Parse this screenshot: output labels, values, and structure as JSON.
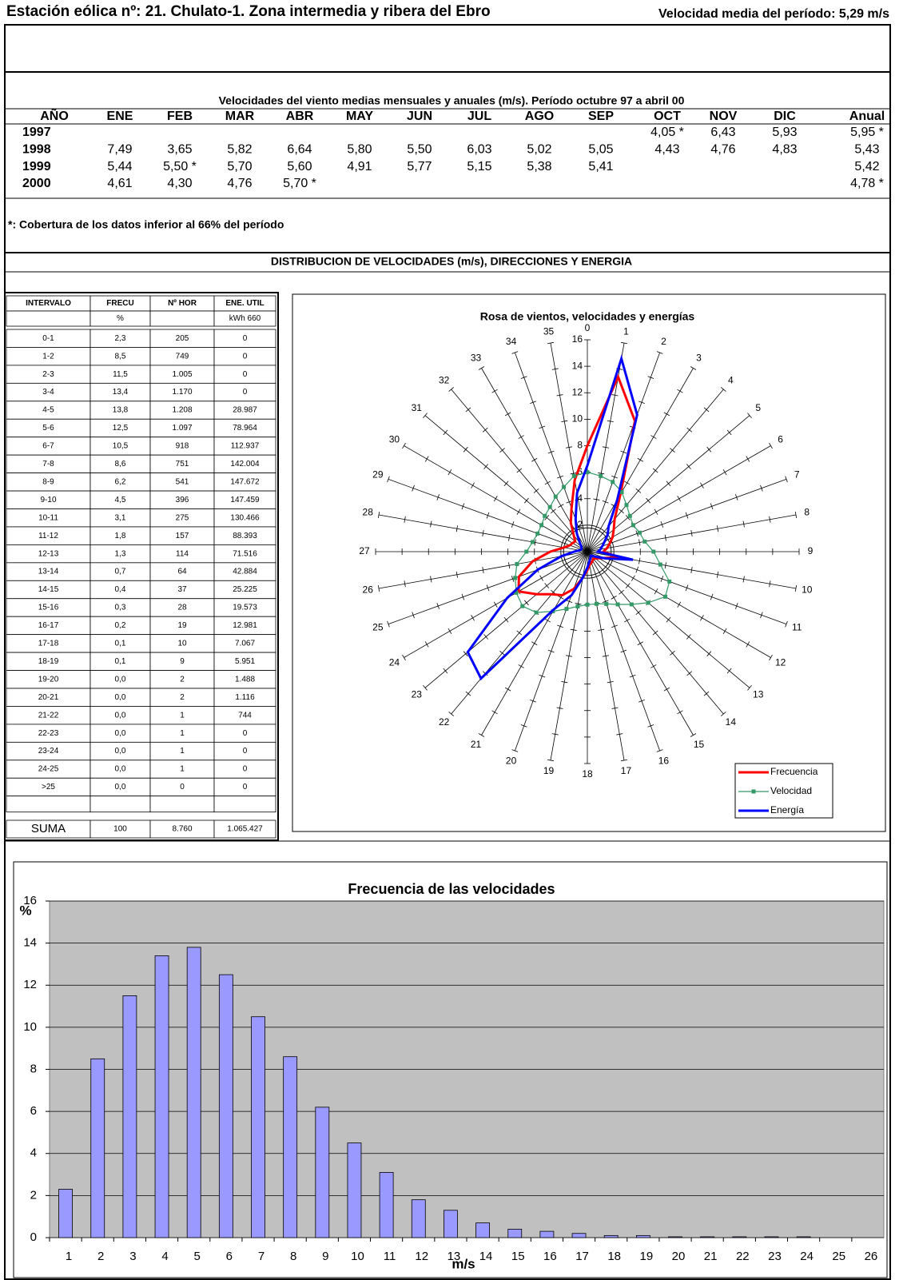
{
  "header": {
    "title": "Estación eólica nº: 21. Chulato-1. Zona intermedia y ribera del Ebro",
    "mean_speed": "Velocidad media del período: 5,29 m/s"
  },
  "monthly": {
    "title": "Velocidades del viento medias mensuales y anuales (m/s). Período octubre 97 a abril 00",
    "columns": [
      "AÑO",
      "ENE",
      "FEB",
      "MAR",
      "ABR",
      "MAY",
      "JUN",
      "JUL",
      "AGO",
      "SEP",
      "OCT",
      "NOV",
      "DIC",
      "Anual"
    ],
    "rows": [
      [
        "1997",
        null,
        null,
        null,
        null,
        null,
        null,
        null,
        null,
        null,
        "4,05 *",
        "6,43",
        "5,93",
        "5,95 *"
      ],
      [
        "1998",
        "7,49",
        "3,65",
        "5,82",
        "6,64",
        "5,80",
        "5,50",
        "6,03",
        "5,02",
        "5,05",
        "4,43",
        "4,76",
        "4,83",
        "5,43"
      ],
      [
        "1999",
        "5,44",
        "5,50 *",
        "5,70",
        "5,60",
        "4,91",
        "5,77",
        "5,15",
        "5,38",
        "5,41",
        null,
        null,
        null,
        "5,42"
      ],
      [
        "2000",
        "4,61",
        "4,30",
        "4,76",
        "5,70 *",
        null,
        null,
        null,
        null,
        null,
        null,
        null,
        null,
        "4,78 *"
      ]
    ]
  },
  "note": "*: Cobertura de los datos inferior al 66% del período",
  "section_title": "DISTRIBUCION DE VELOCIDADES (m/s), DIRECCIONES Y ENERGIA",
  "distribution": {
    "columns": [
      "INTERVALO",
      "FRECU",
      "Nº HOR",
      "ENE. UTIL"
    ],
    "units": [
      null,
      "%",
      null,
      "kWh 660"
    ],
    "rows": [
      [
        "0-1",
        "2,3",
        "205",
        "0"
      ],
      [
        "1-2",
        "8,5",
        "749",
        "0"
      ],
      [
        "2-3",
        "11,5",
        "1.005",
        "0"
      ],
      [
        "3-4",
        "13,4",
        "1.170",
        "0"
      ],
      [
        "4-5",
        "13,8",
        "1.208",
        "28.987"
      ],
      [
        "5-6",
        "12,5",
        "1.097",
        "78.964"
      ],
      [
        "6-7",
        "10,5",
        "918",
        "112.937"
      ],
      [
        "7-8",
        "8,6",
        "751",
        "142.004"
      ],
      [
        "8-9",
        "6,2",
        "541",
        "147.672"
      ],
      [
        "9-10",
        "4,5",
        "396",
        "147.459"
      ],
      [
        "10-11",
        "3,1",
        "275",
        "130.466"
      ],
      [
        "11-12",
        "1,8",
        "157",
        "88.393"
      ],
      [
        "12-13",
        "1,3",
        "114",
        "71.516"
      ],
      [
        "13-14",
        "0,7",
        "64",
        "42.884"
      ],
      [
        "14-15",
        "0,4",
        "37",
        "25.225"
      ],
      [
        "15-16",
        "0,3",
        "28",
        "19.573"
      ],
      [
        "16-17",
        "0,2",
        "19",
        "12.981"
      ],
      [
        "17-18",
        "0,1",
        "10",
        "7.067"
      ],
      [
        "18-19",
        "0,1",
        "9",
        "5.951"
      ],
      [
        "19-20",
        "0,0",
        "2",
        "1.488"
      ],
      [
        "20-21",
        "0,0",
        "2",
        "1.116"
      ],
      [
        "21-22",
        "0,0",
        "1",
        "744"
      ],
      [
        "22-23",
        "0,0",
        "1",
        "0"
      ],
      [
        "23-24",
        "0,0",
        "1",
        "0"
      ],
      [
        "24-25",
        "0,0",
        "1",
        "0"
      ],
      [
        ">25",
        "0,0",
        "0",
        "0"
      ]
    ],
    "total": [
      "SUMA",
      "100",
      "8.760",
      "1.065.427"
    ]
  },
  "chart_data": [
    {
      "type": "radar",
      "title": "Rosa de vientos, velocidades y energías",
      "categories": [
        "0",
        "1",
        "2",
        "3",
        "4",
        "5",
        "6",
        "7",
        "8",
        "9",
        "10",
        "11",
        "12",
        "13",
        "14",
        "15",
        "16",
        "17",
        "18",
        "19",
        "20",
        "21",
        "22",
        "23",
        "24",
        "25",
        "26",
        "27",
        "28",
        "29",
        "30",
        "31",
        "32",
        "33",
        "34",
        "35"
      ],
      "rlim": [
        0,
        16
      ],
      "rticks": [
        2,
        4,
        6,
        8,
        10,
        12,
        14,
        16
      ],
      "series": [
        {
          "name": "Frecuencia",
          "color": "#ff0000",
          "values": [
            8.0,
            13.4,
            10.5,
            5.0,
            3.2,
            2.6,
            2.2,
            1.8,
            1.5,
            1.2,
            2.4,
            1.4,
            1.0,
            0.8,
            0.7,
            0.8,
            0.9,
            1.0,
            1.4,
            2.0,
            3.0,
            3.8,
            4.2,
            5.0,
            6.0,
            5.5,
            4.2,
            2.8,
            1.8,
            1.4,
            1.3,
            1.2,
            1.6,
            2.5,
            3.5,
            5.5
          ]
        },
        {
          "name": "Velocidad",
          "color": "#339966",
          "values": [
            6.0,
            5.8,
            5.6,
            5.2,
            4.6,
            4.2,
            4.0,
            4.2,
            4.4,
            5.0,
            5.6,
            6.6,
            6.8,
            6.0,
            5.2,
            4.6,
            4.2,
            4.0,
            4.0,
            4.2,
            4.6,
            5.2,
            6.0,
            6.4,
            6.2,
            5.8,
            5.4,
            4.6,
            4.2,
            4.0,
            4.0,
            4.2,
            4.4,
            4.8,
            5.2,
            5.8
          ]
        },
        {
          "name": "Energía",
          "color": "#0000ff",
          "values": [
            6.5,
            14.8,
            11.0,
            4.5,
            2.5,
            2.0,
            1.5,
            1.2,
            1.0,
            0.8,
            3.5,
            1.5,
            0.8,
            0.5,
            0.4,
            0.5,
            0.6,
            0.8,
            1.2,
            2.0,
            3.5,
            5.0,
            12.5,
            11.8,
            7.0,
            4.0,
            2.0,
            1.0,
            0.6,
            0.5,
            0.5,
            0.6,
            0.9,
            1.6,
            2.6,
            4.5
          ]
        }
      ]
    },
    {
      "type": "bar",
      "title": "Frecuencia de las velocidades",
      "ylabel": "%",
      "xlabel": "m/s",
      "categories": [
        "1",
        "2",
        "3",
        "4",
        "5",
        "6",
        "7",
        "8",
        "9",
        "10",
        "11",
        "12",
        "13",
        "14",
        "15",
        "16",
        "17",
        "18",
        "19",
        "20",
        "21",
        "22",
        "23",
        "24",
        "25",
        "26"
      ],
      "values": [
        2.3,
        8.5,
        11.5,
        13.4,
        13.8,
        12.5,
        10.5,
        8.6,
        6.2,
        4.5,
        3.1,
        1.8,
        1.3,
        0.7,
        0.4,
        0.3,
        0.2,
        0.1,
        0.1,
        0.04,
        0.04,
        0.04,
        0.04,
        0.04,
        0,
        0
      ],
      "color": "#9999ff",
      "background": "#c0c0c0",
      "ylim": [
        0,
        16
      ],
      "yticks": [
        0,
        2,
        4,
        6,
        8,
        10,
        12,
        14,
        16
      ],
      "grid": true
    }
  ]
}
